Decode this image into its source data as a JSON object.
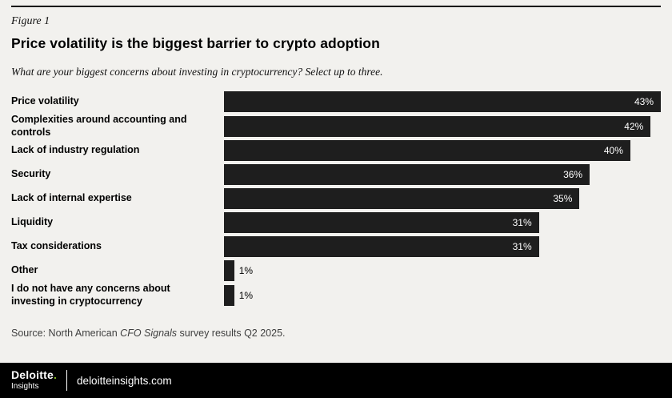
{
  "figure_label": "Figure 1",
  "title": "Price volatility is the biggest barrier to crypto adoption",
  "subtitle": "What are your biggest concerns about investing in cryptocurrency? Select up to three.",
  "source": {
    "prefix": "Source: North American ",
    "italic": "CFO Signals",
    "suffix": " survey results Q2 2025."
  },
  "footer": {
    "brand": "Deloitte",
    "brand_dot": ".",
    "brand_sub": "Insights",
    "site": "deloitteinsights.com"
  },
  "colors": {
    "background": "#f2f1ee",
    "bar": "#1e1e1e",
    "footer_bg": "#000000",
    "accent_green": "#86bc25"
  },
  "chart_data": {
    "type": "bar",
    "orientation": "horizontal",
    "title": "Price volatility is the biggest barrier to crypto adoption",
    "question": "What are your biggest concerns about investing in cryptocurrency? Select up to three.",
    "unit": "%",
    "xlim": [
      0,
      43
    ],
    "grid": false,
    "legend": false,
    "categories": [
      "Price volatility",
      "Complexities around accounting and controls",
      "Lack of industry regulation",
      "Security",
      "Lack of internal expertise",
      "Liquidity",
      "Tax considerations",
      "Other",
      "I do not have any concerns about investing in cryptocurrency"
    ],
    "values": [
      43,
      42,
      40,
      36,
      35,
      31,
      31,
      1,
      1
    ],
    "value_labels": [
      "43%",
      "42%",
      "40%",
      "36%",
      "35%",
      "31%",
      "31%",
      "1%",
      "1%"
    ]
  }
}
